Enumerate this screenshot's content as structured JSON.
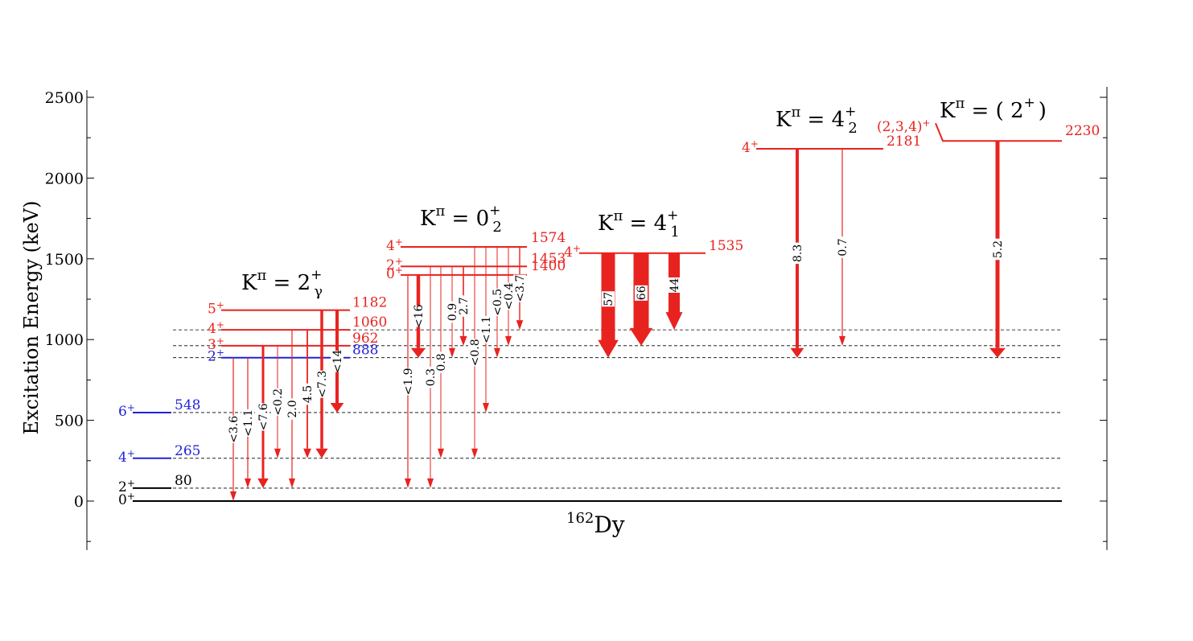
{
  "axis": {
    "ylabel": "Excitation Energy (keV)",
    "ylim": [
      -300,
      2550
    ],
    "ticks": [
      0,
      500,
      1000,
      1500,
      2000,
      2500
    ],
    "tick_labels": [
      "0",
      "500",
      "1000",
      "1500",
      "2000",
      "2500"
    ]
  },
  "nucleus": {
    "mass": "162",
    "symbol": "Dy"
  },
  "colors": {
    "red": "#e8231f",
    "blue": "#2222d8",
    "black": "#000000"
  },
  "bands": [
    {
      "id": "gamma",
      "label": "K",
      "pi": "π",
      "eq": " = 2",
      "plus": "+",
      "sub": "γ"
    },
    {
      "id": "zero2",
      "label": "K",
      "pi": "π",
      "eq": " = 0",
      "plus": "+",
      "sub": "2"
    },
    {
      "id": "four1",
      "label": "K",
      "pi": "π",
      "eq": " = 4",
      "plus": "+",
      "sub": "1"
    },
    {
      "id": "four2",
      "label": "K",
      "pi": "π",
      "eq": " = 4",
      "plus": "+",
      "sub": "2"
    },
    {
      "id": "twoplus",
      "label": "K",
      "pi": "π",
      "eq": "  = ( 2",
      "plus": "+",
      "close": ")",
      "sub": ""
    }
  ],
  "levels": [
    {
      "spin": "0",
      "parity": "+",
      "energy": 0,
      "energy_label": "",
      "color": "black"
    },
    {
      "spin": "2",
      "parity": "+",
      "energy": 80,
      "energy_label": "80",
      "color": "black"
    },
    {
      "spin": "4",
      "parity": "+",
      "energy": 265,
      "energy_label": "265",
      "color": "blue"
    },
    {
      "spin": "6",
      "parity": "+",
      "energy": 548,
      "energy_label": "548",
      "color": "blue"
    },
    {
      "spin": "2",
      "parity": "+",
      "energy": 888,
      "energy_label": "888",
      "color": "blue"
    },
    {
      "spin": "3",
      "parity": "+",
      "energy": 962,
      "energy_label": "962",
      "color": "red"
    },
    {
      "spin": "4",
      "parity": "+",
      "energy": 1060,
      "energy_label": "1060",
      "color": "red"
    },
    {
      "spin": "5",
      "parity": "+",
      "energy": 1182,
      "energy_label": "1182",
      "color": "red"
    },
    {
      "spin": "0",
      "parity": "+",
      "energy": 1400,
      "energy_label": "1400",
      "color": "red"
    },
    {
      "spin": "2",
      "parity": "+",
      "energy": 1453,
      "energy_label": "1453",
      "color": "red"
    },
    {
      "spin": "4",
      "parity": "+",
      "energy": 1574,
      "energy_label": "1574",
      "color": "red"
    },
    {
      "spin": "4",
      "parity": "+",
      "energy": 1535,
      "energy_label": "1535",
      "color": "red"
    },
    {
      "spin": "4",
      "parity": "+",
      "energy": 2181,
      "energy_label": "2181",
      "color": "red"
    },
    {
      "spin": "(2,3,4)",
      "parity": "+",
      "energy": 2230,
      "energy_label": "2230",
      "color": "red"
    }
  ],
  "transitions": [
    {
      "from": 888,
      "to": 0,
      "intensity": "<3.6"
    },
    {
      "from": 888,
      "to": 80,
      "intensity": "<1.1"
    },
    {
      "from": 962,
      "to": 80,
      "intensity": "<7.6"
    },
    {
      "from": 962,
      "to": 265,
      "intensity": "<0.2"
    },
    {
      "from": 1060,
      "to": 80,
      "intensity": "2.0"
    },
    {
      "from": 1060,
      "to": 265,
      "intensity": "4.5"
    },
    {
      "from": 1182,
      "to": 265,
      "intensity": "<7.3"
    },
    {
      "from": 1182,
      "to": 548,
      "intensity": "<14"
    },
    {
      "from": 1400,
      "to": 80,
      "intensity": "<1.9"
    },
    {
      "from": 1400,
      "to": 888,
      "intensity": "<16"
    },
    {
      "from": 1453,
      "to": 80,
      "intensity": "0.3"
    },
    {
      "from": 1453,
      "to": 265,
      "intensity": "0.8"
    },
    {
      "from": 1453,
      "to": 888,
      "intensity": "0.9"
    },
    {
      "from": 1453,
      "to": 962,
      "intensity": "2.7"
    },
    {
      "from": 1574,
      "to": 265,
      "intensity": "<0.8"
    },
    {
      "from": 1574,
      "to": 548,
      "intensity": "<1.1"
    },
    {
      "from": 1574,
      "to": 888,
      "intensity": "<0.5"
    },
    {
      "from": 1574,
      "to": 962,
      "intensity": "<0.4"
    },
    {
      "from": 1574,
      "to": 1060,
      "intensity": "<3.7"
    },
    {
      "from": 1535,
      "to": 888,
      "intensity": "57"
    },
    {
      "from": 1535,
      "to": 962,
      "intensity": "66"
    },
    {
      "from": 1535,
      "to": 1060,
      "intensity": "44"
    },
    {
      "from": 2181,
      "to": 888,
      "intensity": "8.3"
    },
    {
      "from": 2181,
      "to": 962,
      "intensity": "0.7"
    },
    {
      "from": 2230,
      "to": 888,
      "intensity": "5.2"
    }
  ]
}
